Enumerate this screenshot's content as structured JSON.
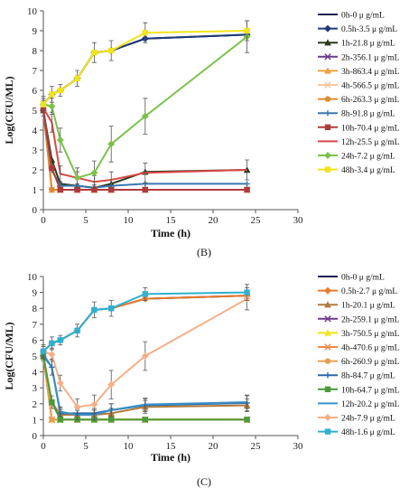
{
  "chart_data": [
    {
      "type": "line",
      "panel_label": "(B)",
      "xlabel": "Time (h)",
      "ylabel": "Log(CFU/ML)",
      "xlim": [
        0,
        30
      ],
      "ylim": [
        0,
        10
      ],
      "xticks": [
        0,
        5,
        10,
        15,
        20,
        25,
        30
      ],
      "yticks": [
        0,
        1,
        2,
        3,
        4,
        5,
        6,
        7,
        8,
        9,
        10
      ],
      "grid": false,
      "legend_position": "right",
      "series": [
        {
          "name": "0h-0 μ g/mL",
          "color": "#1f1f4f",
          "marker": "none",
          "x": [
            0,
            1,
            2,
            4,
            6,
            8,
            12,
            24
          ],
          "y": [
            5.3,
            5.8,
            6.0,
            6.6,
            7.9,
            8.0,
            8.6,
            8.8
          ],
          "err": []
        },
        {
          "name": "0.5h-3.5 μ g/mL",
          "color": "#1f3a7a",
          "marker": "diamond",
          "x": [
            0,
            1,
            2,
            4,
            6,
            8,
            12,
            24
          ],
          "y": [
            5.3,
            5.8,
            6.0,
            6.6,
            7.9,
            8.0,
            8.6,
            8.8
          ],
          "err": []
        },
        {
          "name": "1h-21.8 μ g/mL",
          "color": "#2a3a1a",
          "marker": "triangle",
          "x": [
            0,
            1,
            2,
            4,
            6,
            8,
            12,
            24
          ],
          "y": [
            5.0,
            2.5,
            1.3,
            1.2,
            1.1,
            1.3,
            1.9,
            2.0
          ],
          "err": []
        },
        {
          "name": "2h-356.1 μ g/mL",
          "color": "#6b3a8a",
          "marker": "x",
          "x": [
            0,
            1,
            2,
            4,
            6,
            8,
            12,
            24
          ],
          "y": [
            5.0,
            1.0,
            1.0,
            1.0,
            1.0,
            1.0,
            1.0,
            1.0
          ],
          "err": []
        },
        {
          "name": "3h-863.4 μ g/mL",
          "color": "#f0a040",
          "marker": "triangle",
          "x": [
            0,
            1,
            2,
            4,
            6,
            8,
            12,
            24
          ],
          "y": [
            5.0,
            1.0,
            1.0,
            1.0,
            1.0,
            1.0,
            1.0,
            1.0
          ],
          "err": []
        },
        {
          "name": "4h-566.5 μ g/mL",
          "color": "#f6c8a0",
          "marker": "x",
          "x": [
            0,
            1,
            2,
            4,
            6,
            8,
            12,
            24
          ],
          "y": [
            5.0,
            1.0,
            1.0,
            1.0,
            1.0,
            1.0,
            1.0,
            1.0
          ],
          "err": []
        },
        {
          "name": "6h-263.3 μ g/mL",
          "color": "#e08a30",
          "marker": "circle",
          "x": [
            0,
            1,
            2,
            4,
            6,
            8,
            12,
            24
          ],
          "y": [
            5.0,
            1.0,
            1.0,
            1.0,
            1.0,
            1.0,
            1.0,
            1.0
          ],
          "err": []
        },
        {
          "name": "8h-91.8 μ g/mL",
          "color": "#3a78b0",
          "marker": "plus",
          "x": [
            0,
            1,
            2,
            4,
            6,
            8,
            12,
            24
          ],
          "y": [
            5.0,
            2.0,
            1.2,
            1.2,
            1.1,
            1.2,
            1.3,
            1.3
          ],
          "err": []
        },
        {
          "name": "10h-70.4 μ g/mL",
          "color": "#b03a3a",
          "marker": "square",
          "x": [
            0,
            1,
            2,
            4,
            6,
            8,
            12,
            24
          ],
          "y": [
            5.0,
            2.1,
            1.0,
            1.0,
            1.0,
            1.0,
            1.0,
            1.0
          ],
          "err": []
        },
        {
          "name": "12h-25.5 μ g/mL",
          "color": "#d94848",
          "marker": "none",
          "x": [
            0,
            1,
            2,
            4,
            6,
            8,
            12,
            24
          ],
          "y": [
            5.1,
            4.4,
            1.8,
            1.6,
            1.4,
            1.5,
            1.85,
            2.0
          ],
          "err": [
            0.4,
            0.5,
            0.4,
            0.3,
            0.3,
            0.4,
            0.5,
            0.5
          ]
        },
        {
          "name": "24h-7.2 μ g/mL",
          "color": "#7cc24a",
          "marker": "diamond",
          "x": [
            0,
            1,
            2,
            4,
            6,
            8,
            12,
            24
          ],
          "y": [
            5.3,
            5.2,
            3.5,
            1.6,
            1.85,
            3.3,
            4.7,
            8.7
          ],
          "err": [
            0.4,
            0.4,
            0.6,
            0.5,
            0.6,
            0.9,
            0.9,
            0.8
          ]
        },
        {
          "name": "48h-3.4 μ g/mL",
          "color": "#f2e41a",
          "marker": "square",
          "x": [
            0,
            1,
            2,
            4,
            6,
            8,
            12,
            24
          ],
          "y": [
            5.3,
            5.8,
            6.0,
            6.6,
            7.9,
            8.0,
            8.9,
            9.0
          ],
          "err": [
            0.3,
            0.4,
            0.3,
            0.4,
            0.5,
            0.5,
            0.5,
            0.5
          ]
        }
      ]
    },
    {
      "type": "line",
      "panel_label": "(C)",
      "xlabel": "Time (h)",
      "ylabel": "Log(CFU/ML)",
      "xlim": [
        0,
        30
      ],
      "ylim": [
        0,
        10
      ],
      "xticks": [
        0,
        5,
        10,
        15,
        20,
        25,
        30
      ],
      "yticks": [
        0,
        1,
        2,
        3,
        4,
        5,
        6,
        7,
        8,
        9,
        10
      ],
      "grid": false,
      "legend_position": "right",
      "series": [
        {
          "name": "0h-0 μ g/mL",
          "color": "#1f1f4f",
          "marker": "none",
          "x": [
            0,
            1,
            2,
            4,
            6,
            8,
            12,
            24
          ],
          "y": [
            5.3,
            5.8,
            6.0,
            6.6,
            7.9,
            8.0,
            8.6,
            8.8
          ],
          "err": []
        },
        {
          "name": "0.5h-2.7 μ g/mL",
          "color": "#e87a2a",
          "marker": "diamond",
          "x": [
            0,
            1,
            2,
            4,
            6,
            8,
            12,
            24
          ],
          "y": [
            5.3,
            5.8,
            6.0,
            6.6,
            7.9,
            8.0,
            8.6,
            8.8
          ],
          "err": []
        },
        {
          "name": "1h-20.1 μ g/mL",
          "color": "#b07a3a",
          "marker": "triangle",
          "x": [
            0,
            1,
            2,
            4,
            6,
            8,
            12,
            24
          ],
          "y": [
            5.0,
            2.1,
            1.3,
            1.3,
            1.3,
            1.4,
            1.8,
            1.9
          ],
          "err": [
            0.3,
            0.4,
            0.3,
            0.3,
            0.3,
            0.3,
            0.4,
            0.4
          ]
        },
        {
          "name": "2h-259.1 μ g/mL",
          "color": "#6b3a8a",
          "marker": "x",
          "x": [
            0,
            1,
            2,
            4,
            6,
            8,
            12,
            24
          ],
          "y": [
            5.0,
            1.0,
            1.0,
            1.0,
            1.0,
            1.0,
            1.0,
            1.0
          ],
          "err": []
        },
        {
          "name": "3h-750.5 μ g/mL",
          "color": "#f2e41a",
          "marker": "triangle",
          "x": [
            0,
            1,
            2,
            4,
            6,
            8,
            12,
            24
          ],
          "y": [
            5.0,
            1.0,
            1.0,
            1.0,
            1.0,
            1.0,
            1.0,
            1.0
          ],
          "err": []
        },
        {
          "name": "4h-470.6 μ g/mL",
          "color": "#f08a4a",
          "marker": "x",
          "x": [
            0,
            1,
            2,
            4,
            6,
            8,
            12,
            24
          ],
          "y": [
            5.0,
            1.0,
            1.0,
            1.0,
            1.0,
            1.0,
            1.0,
            1.0
          ],
          "err": []
        },
        {
          "name": "6h-260.9 μ g/mL",
          "color": "#e8a050",
          "marker": "circle",
          "x": [
            0,
            1,
            2,
            4,
            6,
            8,
            12,
            24
          ],
          "y": [
            5.0,
            1.0,
            1.0,
            1.0,
            1.0,
            1.0,
            1.0,
            1.0
          ],
          "err": []
        },
        {
          "name": "8h-84.7 μ g/mL",
          "color": "#2a6aa8",
          "marker": "plus",
          "x": [
            0,
            1,
            2,
            4,
            6,
            8,
            12,
            24
          ],
          "y": [
            5.0,
            4.3,
            1.4,
            1.4,
            1.4,
            1.6,
            1.9,
            2.05
          ],
          "err": [
            0.3,
            0.5,
            0.3,
            0.3,
            0.3,
            0.4,
            0.4,
            0.5
          ]
        },
        {
          "name": "10h-64.7 μ g/mL",
          "color": "#4a9a3a",
          "marker": "square",
          "x": [
            0,
            1,
            2,
            4,
            6,
            8,
            12,
            24
          ],
          "y": [
            5.0,
            2.1,
            1.0,
            1.0,
            1.0,
            1.0,
            1.0,
            1.0
          ],
          "err": []
        },
        {
          "name": "12h-20.2 μ g/mL",
          "color": "#3a90c8",
          "marker": "none",
          "x": [
            0,
            1,
            2,
            4,
            6,
            8,
            12,
            24
          ],
          "y": [
            5.1,
            4.3,
            1.5,
            1.3,
            1.3,
            1.6,
            1.95,
            2.1
          ],
          "err": [
            0.3,
            0.5,
            0.3,
            0.3,
            0.3,
            0.4,
            0.4,
            0.4
          ]
        },
        {
          "name": "24h-7.9 μ g/mL",
          "color": "#f5b088",
          "marker": "diamond",
          "x": [
            0,
            1,
            2,
            4,
            6,
            8,
            12,
            24
          ],
          "y": [
            5.3,
            5.1,
            3.3,
            1.8,
            1.95,
            3.2,
            5.0,
            8.6
          ],
          "err": [
            0.4,
            0.4,
            0.5,
            0.5,
            0.6,
            0.9,
            0.9,
            0.7
          ]
        },
        {
          "name": "48h-1.6 μ g/mL",
          "color": "#2fb0d0",
          "marker": "square",
          "x": [
            0,
            1,
            2,
            4,
            6,
            8,
            12,
            24
          ],
          "y": [
            5.3,
            5.8,
            6.0,
            6.6,
            7.9,
            8.0,
            8.9,
            9.0
          ],
          "err": [
            0.3,
            0.4,
            0.3,
            0.4,
            0.5,
            0.5,
            0.4,
            0.5
          ]
        }
      ]
    }
  ]
}
